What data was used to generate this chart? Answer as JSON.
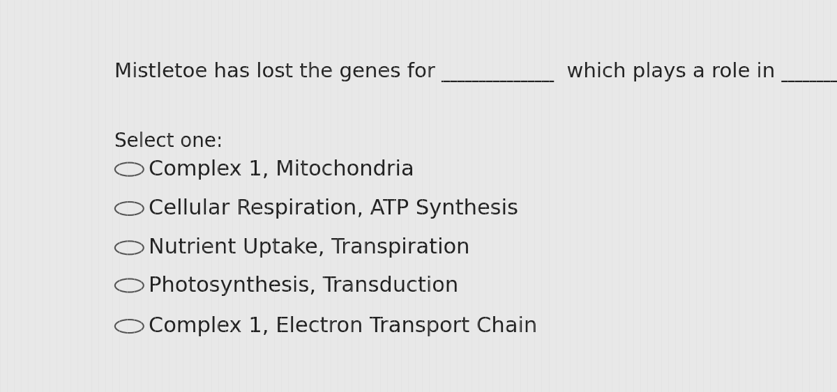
{
  "background_color": "#e8e8e8",
  "text_color": "#222222",
  "circle_color": "#555555",
  "title_text": "Mistletoe has lost the genes for ___________  which plays a role in ______",
  "select_label": "Select one:",
  "options": [
    "Complex 1, Mitochondria",
    "Cellular Respiration, ATP Synthesis",
    "Nutrient Uptake, Transpiration",
    "Photosynthesis, Transduction",
    "Complex 1, Electron Transport Chain"
  ],
  "title_fontsize": 21,
  "select_fontsize": 20,
  "option_fontsize": 22,
  "fig_width": 12.0,
  "fig_height": 5.63
}
